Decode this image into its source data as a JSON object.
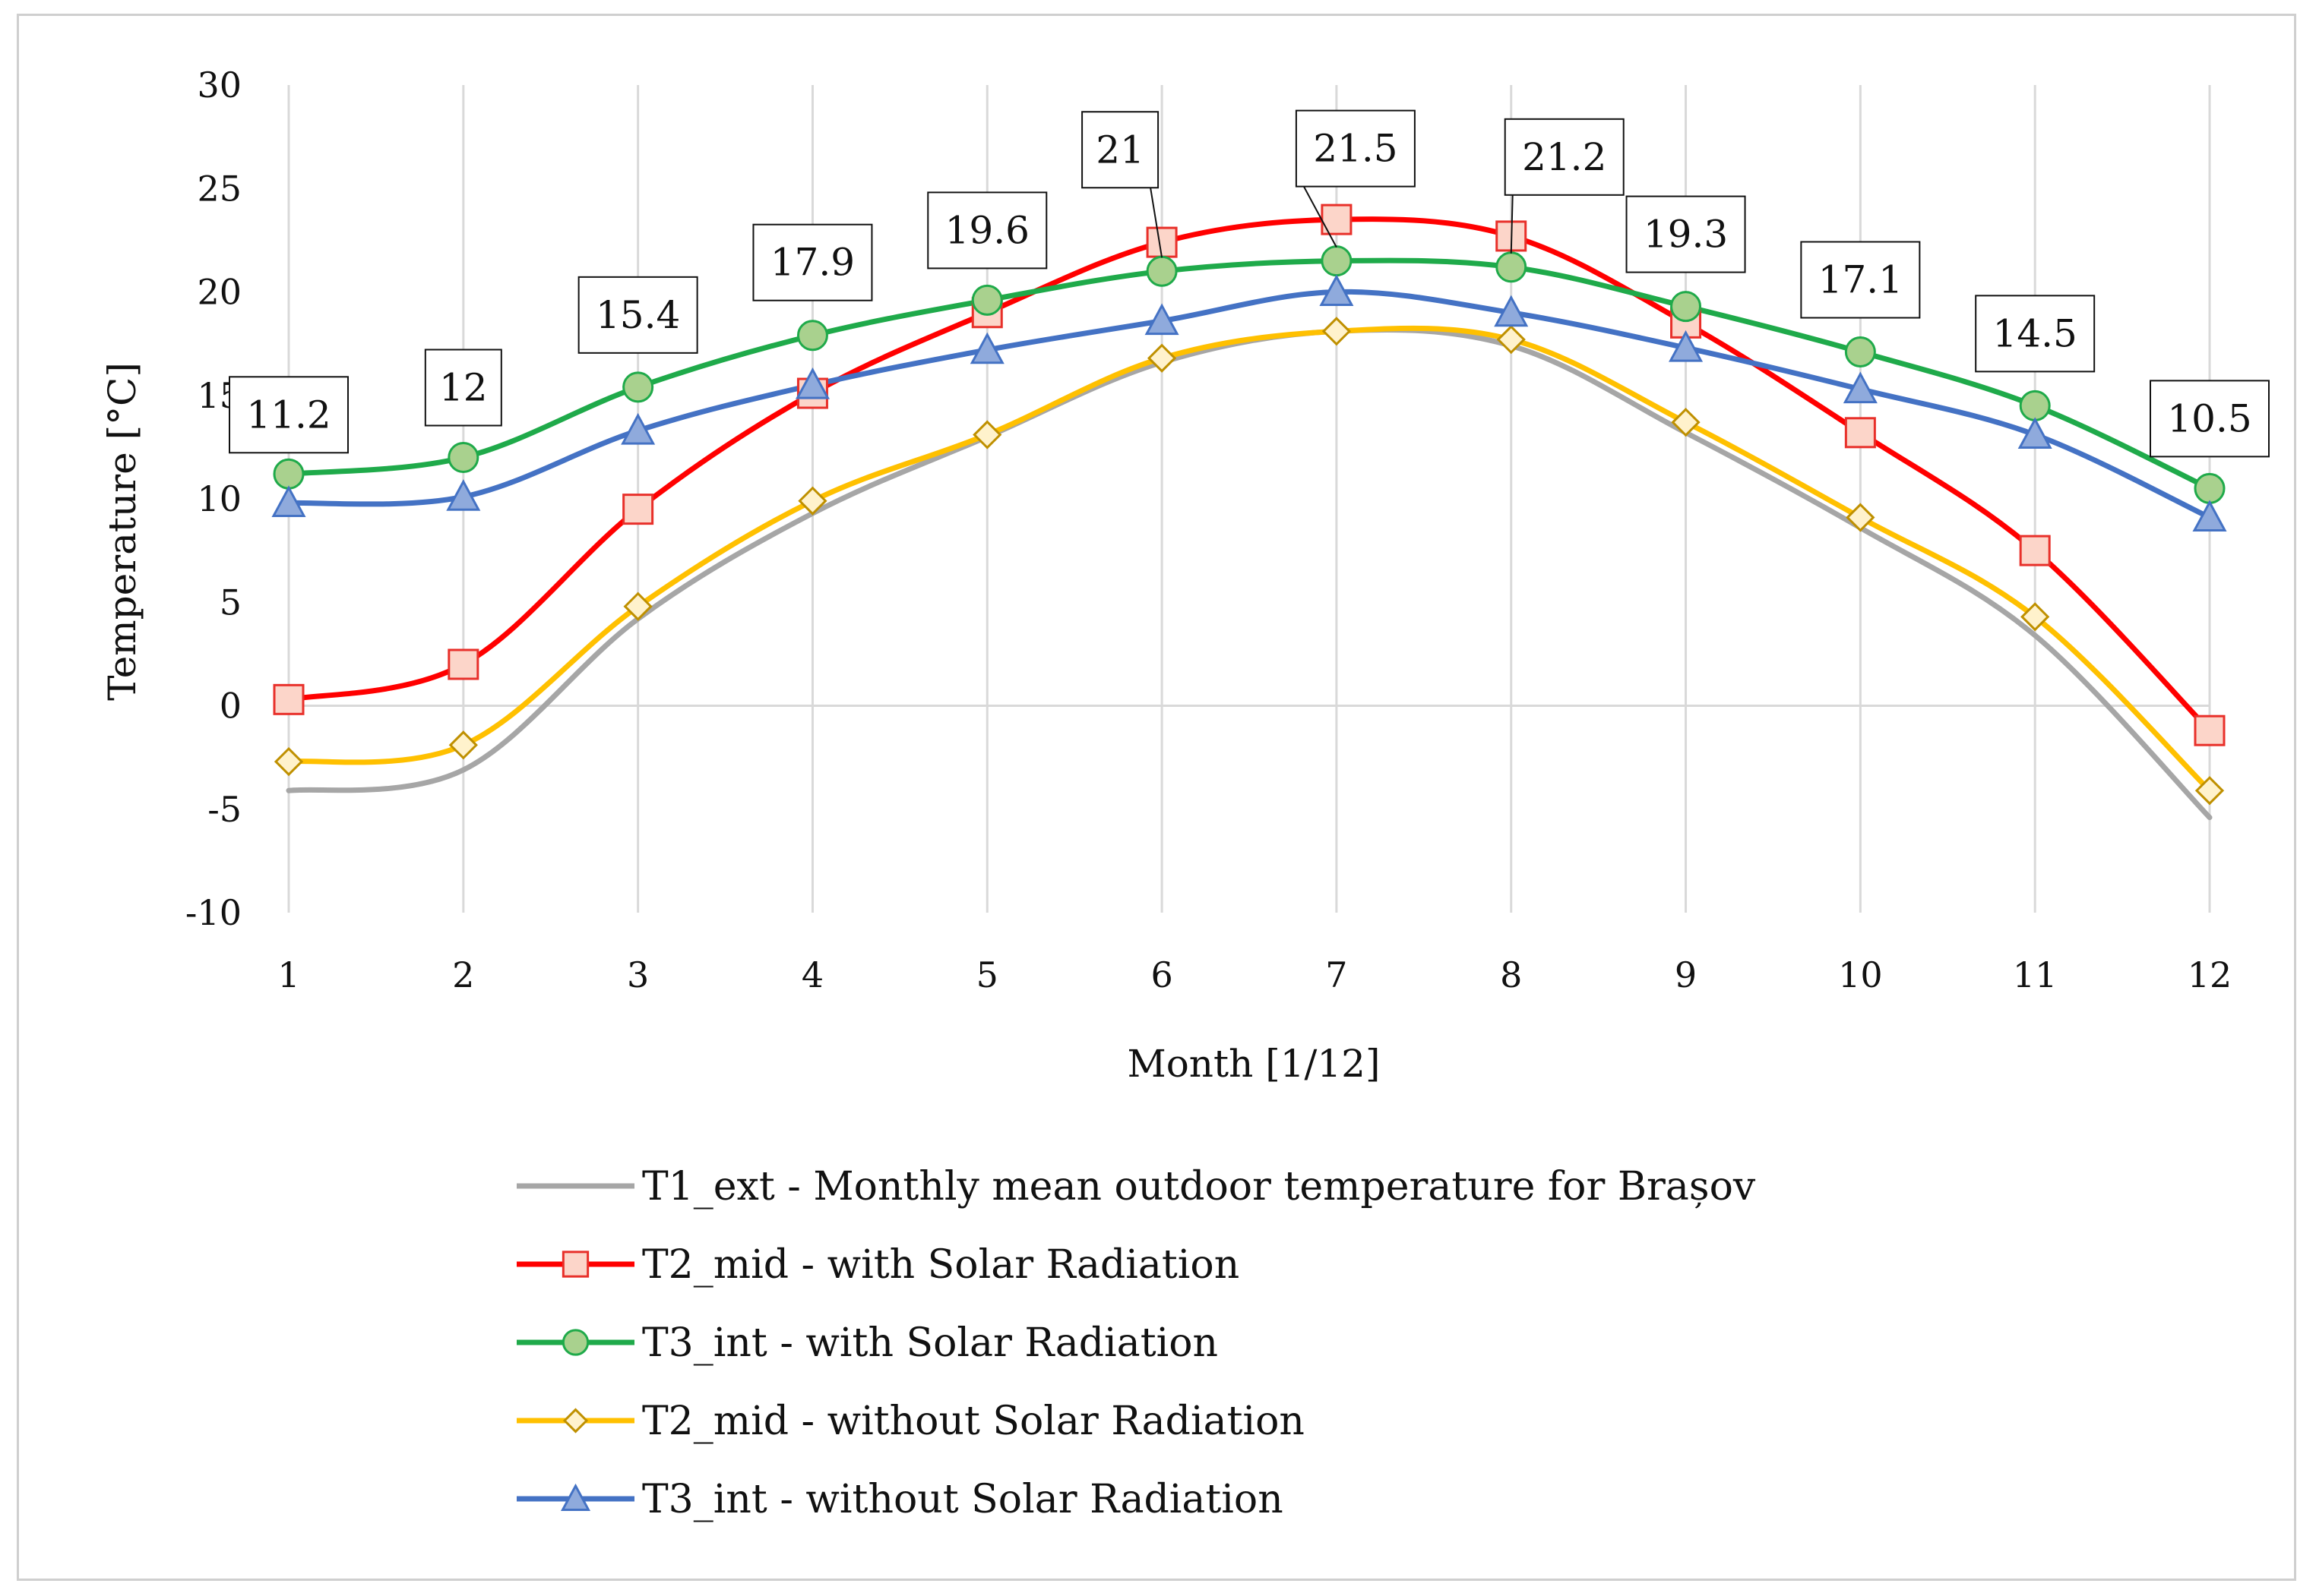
{
  "chart_data": {
    "type": "line",
    "title": "",
    "xlabel": "Month [1/12]",
    "ylabel": "Temperature [°C]",
    "x": [
      1,
      2,
      3,
      4,
      5,
      6,
      7,
      8,
      9,
      10,
      11,
      12
    ],
    "ylim": [
      -10,
      30
    ],
    "yticks": [
      -10,
      -5,
      0,
      5,
      10,
      15,
      20,
      25,
      30
    ],
    "grid": "vertical",
    "legend_position": "bottom",
    "series": [
      {
        "name": "T1_ext - Monthly mean outdoor temperature for Brașov",
        "color": "#a6a6a6",
        "marker": "none",
        "values": [
          -4.1,
          -3.1,
          4.2,
          9.3,
          13.0,
          16.6,
          18.1,
          17.4,
          13.2,
          8.6,
          3.4,
          -5.4
        ]
      },
      {
        "name": "T2_mid - with Solar Radiation",
        "color": "#ff0000",
        "marker": "square",
        "values": [
          0.3,
          2.0,
          9.5,
          15.1,
          19.0,
          22.4,
          23.5,
          22.7,
          18.5,
          13.2,
          7.5,
          -1.2
        ]
      },
      {
        "name": "T3_int - with Solar Radiation",
        "color": "#1faa4a",
        "marker": "circle",
        "values": [
          11.2,
          12.0,
          15.4,
          17.9,
          19.6,
          21.0,
          21.5,
          21.2,
          19.3,
          17.1,
          14.5,
          10.5
        ]
      },
      {
        "name": "T2_mid - without Solar Radiation",
        "color": "#ffc000",
        "marker": "diamond",
        "values": [
          -2.7,
          -1.9,
          4.8,
          9.9,
          13.1,
          16.8,
          18.1,
          17.7,
          13.7,
          9.1,
          4.3,
          -4.1
        ]
      },
      {
        "name": "T3_int - without Solar Radiation",
        "color": "#4472c4",
        "marker": "triangle",
        "values": [
          9.8,
          10.1,
          13.3,
          15.5,
          17.2,
          18.6,
          20.0,
          19.0,
          17.3,
          15.3,
          13.1,
          9.1
        ]
      }
    ],
    "data_labels": {
      "series": "T3_int - with Solar Radiation",
      "labels": [
        "11.2",
        "12",
        "15.4",
        "17.9",
        "19.6",
        "21",
        "21.5",
        "21.2",
        "19.3",
        "17.1",
        "14.5",
        "10.5"
      ]
    }
  }
}
